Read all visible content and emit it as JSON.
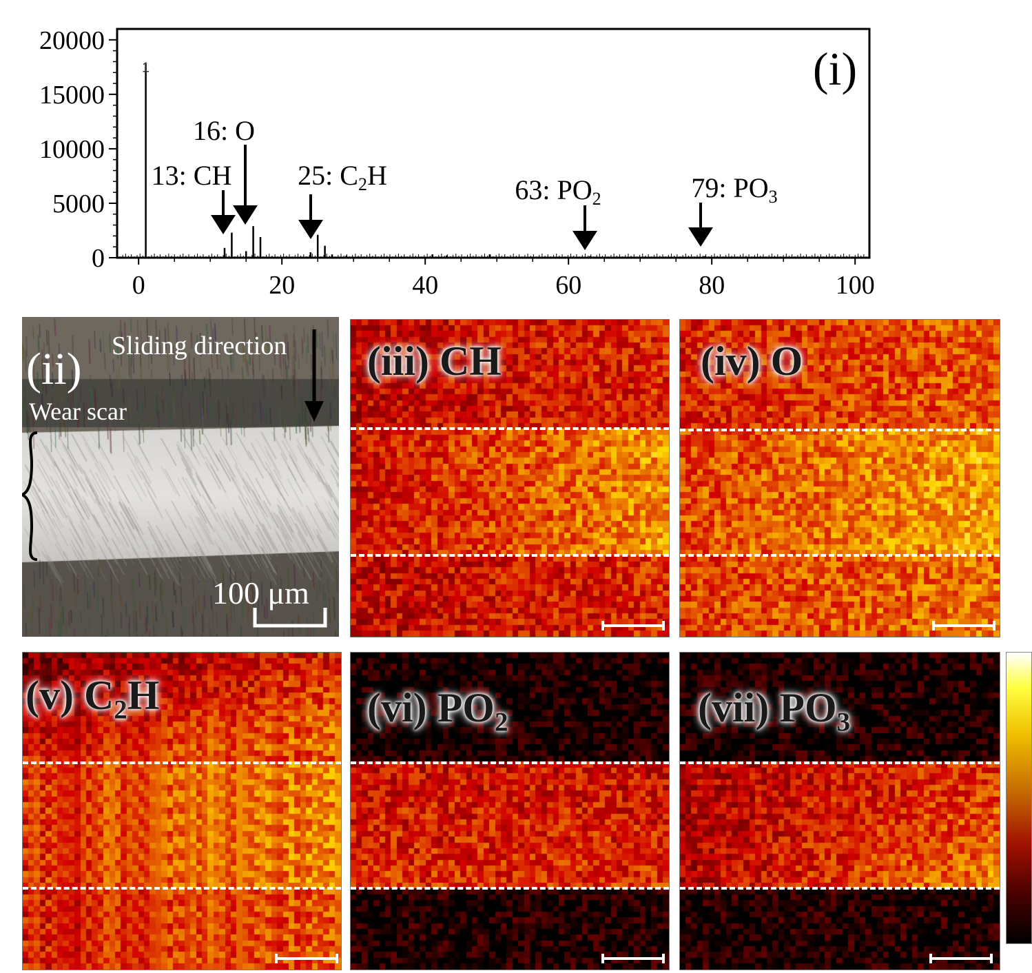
{
  "chart_data": {
    "type": "bar",
    "title": "(i)",
    "xlabel": "",
    "ylabel": "",
    "xlim": [
      -3,
      102
    ],
    "ylim": [
      0,
      21000
    ],
    "xticks": [
      0,
      20,
      40,
      60,
      80,
      100
    ],
    "yticks": [
      0,
      5000,
      10000,
      15000,
      20000
    ],
    "peaks": [
      {
        "x": 1,
        "y": 17800,
        "label": "1"
      },
      {
        "x": 12,
        "y": 900
      },
      {
        "x": 13,
        "y": 2300
      },
      {
        "x": 15,
        "y": 600
      },
      {
        "x": 16,
        "y": 2900
      },
      {
        "x": 17,
        "y": 1900
      },
      {
        "x": 24,
        "y": 500
      },
      {
        "x": 25,
        "y": 2100
      },
      {
        "x": 26,
        "y": 1100
      },
      {
        "x": 27,
        "y": 300
      },
      {
        "x": 29,
        "y": 200
      },
      {
        "x": 41,
        "y": 300
      },
      {
        "x": 43,
        "y": 200
      },
      {
        "x": 49,
        "y": 300
      },
      {
        "x": 63,
        "y": 150
      },
      {
        "x": 79,
        "y": 150
      }
    ],
    "annotations": [
      {
        "text": "13: CH",
        "x": 13
      },
      {
        "text": "16: O",
        "x": 16
      },
      {
        "text": "25: C2H",
        "x": 25
      },
      {
        "text": "63: PO2",
        "x": 63
      },
      {
        "text": "79: PO3",
        "x": 79
      }
    ]
  },
  "panels": {
    "ii": {
      "label": "(ii)",
      "direction": "Sliding direction",
      "wear": "Wear scar",
      "scale": "100 μm"
    },
    "iii": {
      "label": "(iii) CH"
    },
    "iv": {
      "label": "(iv) O"
    },
    "v": {
      "pre": "(v) C",
      "sub": "2",
      "post": "H"
    },
    "vi": {
      "pre": "(vi) PO",
      "sub": "2"
    },
    "vii": {
      "pre": "(vii) PO",
      "sub": "3"
    }
  },
  "colors": {
    "hot_dark": "#000000",
    "hot_mid": "#b81e0a",
    "hot_high": "#f0c000",
    "hot_top": "#ffffff"
  }
}
